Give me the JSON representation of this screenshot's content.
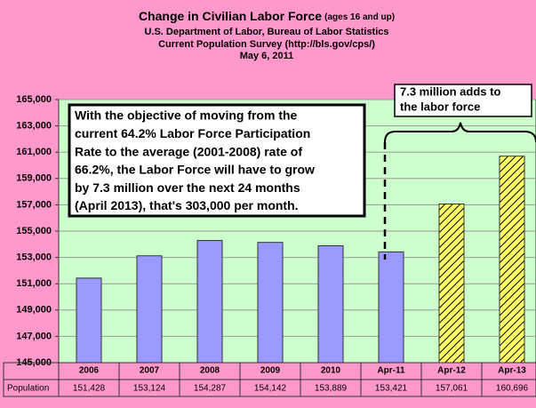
{
  "chart_data": {
    "type": "bar",
    "title": "Change in Civilian Labor Force",
    "title_note": "(ages 16 and up)",
    "subtitle": [
      "U.S. Department of Labor, Bureau of Labor Statistics",
      "Current Population Survey (http://bls.gov/cps/)",
      "May 6, 2011"
    ],
    "categories": [
      "2006",
      "2007",
      "2008",
      "2009",
      "2010",
      "Apr-11",
      "Apr-12",
      "Apr-13"
    ],
    "series": [
      {
        "name": "Population",
        "values": [
          151428,
          153124,
          154287,
          154142,
          153889,
          153421,
          157061,
          160696
        ],
        "value_labels": [
          "151,428",
          "153,124",
          "154,287",
          "154,142",
          "153,889",
          "153,421",
          "157,061",
          "160,696"
        ],
        "colors": [
          "#9999ff",
          "#9999ff",
          "#9999ff",
          "#9999ff",
          "#9999ff",
          "#9999ff",
          "#ffff66",
          "#ffff66"
        ],
        "hatched": [
          false,
          false,
          false,
          false,
          false,
          false,
          true,
          true
        ]
      }
    ],
    "ylim": [
      145000,
      165000
    ],
    "yticks": [
      {
        "value": 145000,
        "label": "145,000"
      },
      {
        "value": 147000,
        "label": "147,000"
      },
      {
        "value": 149000,
        "label": "149,000"
      },
      {
        "value": 151000,
        "label": "151,000"
      },
      {
        "value": 153000,
        "label": "153,000"
      },
      {
        "value": 155000,
        "label": "155,000"
      },
      {
        "value": 157000,
        "label": "157,000"
      },
      {
        "value": 159000,
        "label": "159,000"
      },
      {
        "value": 161000,
        "label": "161,000"
      },
      {
        "value": 163000,
        "label": "163,000"
      },
      {
        "value": 165000,
        "label": "165,000"
      }
    ],
    "grid": true,
    "annotation": [
      "With the objective of moving from the",
      "current 64.2% Labor Force Participation",
      "Rate to the average (2001-2008) rate of",
      "66.2%, the Labor Force will have to grow",
      "by 7.3 million over the next 24 months",
      "(April 2013), that's 303,000 per month."
    ],
    "callout": [
      "7.3 million adds to",
      "the labor force"
    ]
  }
}
